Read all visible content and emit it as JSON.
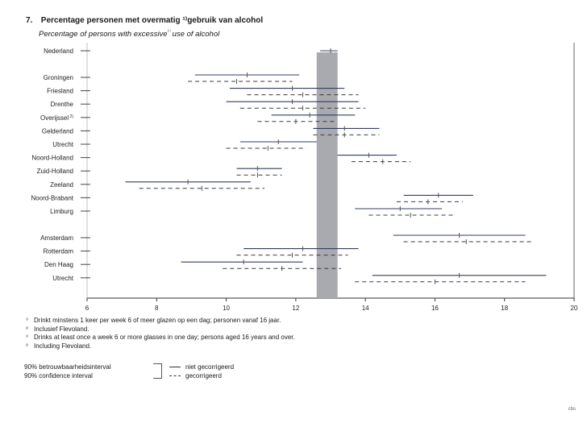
{
  "header": {
    "number": "7.",
    "title_nl": "Percentage personen met overmatig ¹⁾gebruik van alcohol",
    "title_en_pre": "Percentage of persons with excessive",
    "title_en_sup": "¹⁾",
    "title_en_post": " use of alcohol"
  },
  "chart_data": {
    "type": "interval",
    "x_axis": {
      "min": 6,
      "max": 20,
      "ticks": [
        6,
        8,
        10,
        12,
        14,
        16,
        18,
        20
      ]
    },
    "reference_band": {
      "from": 12.6,
      "to": 13.2,
      "color": "#a9a9b0"
    },
    "colors": {
      "solid": "#333c66",
      "dashed": "#3a3a3a",
      "tick": "#555555"
    },
    "categories": [
      {
        "label": "Nederland",
        "group": 0,
        "niet": {
          "point": 13.0,
          "low": 12.7,
          "high": 13.2
        },
        "gecorrigeerd": null
      },
      {
        "label": "Groningen",
        "group": 1,
        "niet": {
          "point": 10.6,
          "low": 9.1,
          "high": 12.1
        },
        "gecorrigeerd": {
          "point": 10.3,
          "low": 8.9,
          "high": 11.9
        }
      },
      {
        "label": "Friesland",
        "group": 1,
        "niet": {
          "point": 11.9,
          "low": 10.1,
          "high": 13.4
        },
        "gecorrigeerd": {
          "point": 12.2,
          "low": 10.6,
          "high": 13.8
        }
      },
      {
        "label": "Drenthe",
        "group": 1,
        "niet": {
          "point": 11.9,
          "low": 10.0,
          "high": 13.8
        },
        "gecorrigeerd": {
          "point": 12.2,
          "low": 10.4,
          "high": 14.0
        }
      },
      {
        "label": "Overijssel",
        "sup": "2)",
        "group": 1,
        "niet": {
          "point": 12.4,
          "low": 11.3,
          "high": 13.7
        },
        "gecorrigeerd": {
          "point": 12.0,
          "low": 10.9,
          "high": 13.1
        }
      },
      {
        "label": "Gelderland",
        "group": 1,
        "niet": {
          "point": 13.4,
          "low": 12.5,
          "high": 14.4
        },
        "gecorrigeerd": {
          "point": 13.4,
          "low": 12.5,
          "high": 14.4
        }
      },
      {
        "label": "Utrecht",
        "group": 1,
        "niet": {
          "point": 11.5,
          "low": 10.4,
          "high": 12.6
        },
        "gecorrigeerd": {
          "point": 11.2,
          "low": 10.0,
          "high": 12.3
        }
      },
      {
        "label": "Noord-Holland",
        "group": 1,
        "niet": {
          "point": 14.1,
          "low": 13.2,
          "high": 14.9
        },
        "gecorrigeerd": {
          "point": 14.5,
          "low": 13.6,
          "high": 15.3
        }
      },
      {
        "label": "Zuid-Holland",
        "group": 1,
        "niet": {
          "point": 10.9,
          "low": 10.3,
          "high": 11.6
        },
        "gecorrigeerd": {
          "point": 10.9,
          "low": 10.3,
          "high": 11.6
        }
      },
      {
        "label": "Zeeland",
        "group": 1,
        "niet": {
          "point": 8.9,
          "low": 7.1,
          "high": 10.7
        },
        "gecorrigeerd": {
          "point": 9.3,
          "low": 7.5,
          "high": 11.1
        }
      },
      {
        "label": "Noord-Brabant",
        "group": 1,
        "niet": {
          "point": 16.1,
          "low": 15.1,
          "high": 17.1
        },
        "gecorrigeerd": {
          "point": 15.8,
          "low": 14.9,
          "high": 16.8
        }
      },
      {
        "label": "Limburg",
        "group": 1,
        "niet": {
          "point": 15.0,
          "low": 13.7,
          "high": 16.2
        },
        "gecorrigeerd": {
          "point": 15.3,
          "low": 14.1,
          "high": 16.6
        }
      },
      {
        "label": "Amsterdam",
        "group": 2,
        "niet": {
          "point": 16.7,
          "low": 14.8,
          "high": 18.6
        },
        "gecorrigeerd": {
          "point": 16.9,
          "low": 15.1,
          "high": 18.8
        }
      },
      {
        "label": "Rotterdam",
        "group": 2,
        "niet": {
          "point": 12.2,
          "low": 10.5,
          "high": 13.8
        },
        "gecorrigeerd": {
          "point": 11.9,
          "low": 10.3,
          "high": 13.5
        }
      },
      {
        "label": "Den Haag",
        "group": 2,
        "niet": {
          "point": 10.5,
          "low": 8.7,
          "high": 12.2
        },
        "gecorrigeerd": {
          "point": 11.6,
          "low": 9.9,
          "high": 13.3
        }
      },
      {
        "label": "Utrecht",
        "group": 2,
        "niet": {
          "point": 16.7,
          "low": 14.2,
          "high": 19.2
        },
        "gecorrigeerd": {
          "point": 16.0,
          "low": 13.7,
          "high": 18.6
        }
      }
    ]
  },
  "footnotes": [
    {
      "mark": "¹⁾",
      "text": "Drinkt minstens 1 keer per week 6 of meer glazen op een dag;  personen vanaf 16 jaar."
    },
    {
      "mark": "²⁾",
      "text": "Inclusief Flevoland."
    },
    {
      "mark": "¹⁾",
      "text": "Drinks at least once a week 6 or more glasses in one day;  persons aged 16 years and over."
    },
    {
      "mark": "²⁾",
      "text": "Including Flevoland."
    }
  ],
  "legend": {
    "interval_nl": "90% betrouwbaarheidsinterval",
    "interval_en": "90% confidence interval",
    "niet": "niet gecorrigeerd",
    "gecorrigeerd": "gecorrigeerd"
  },
  "source": "cbs"
}
